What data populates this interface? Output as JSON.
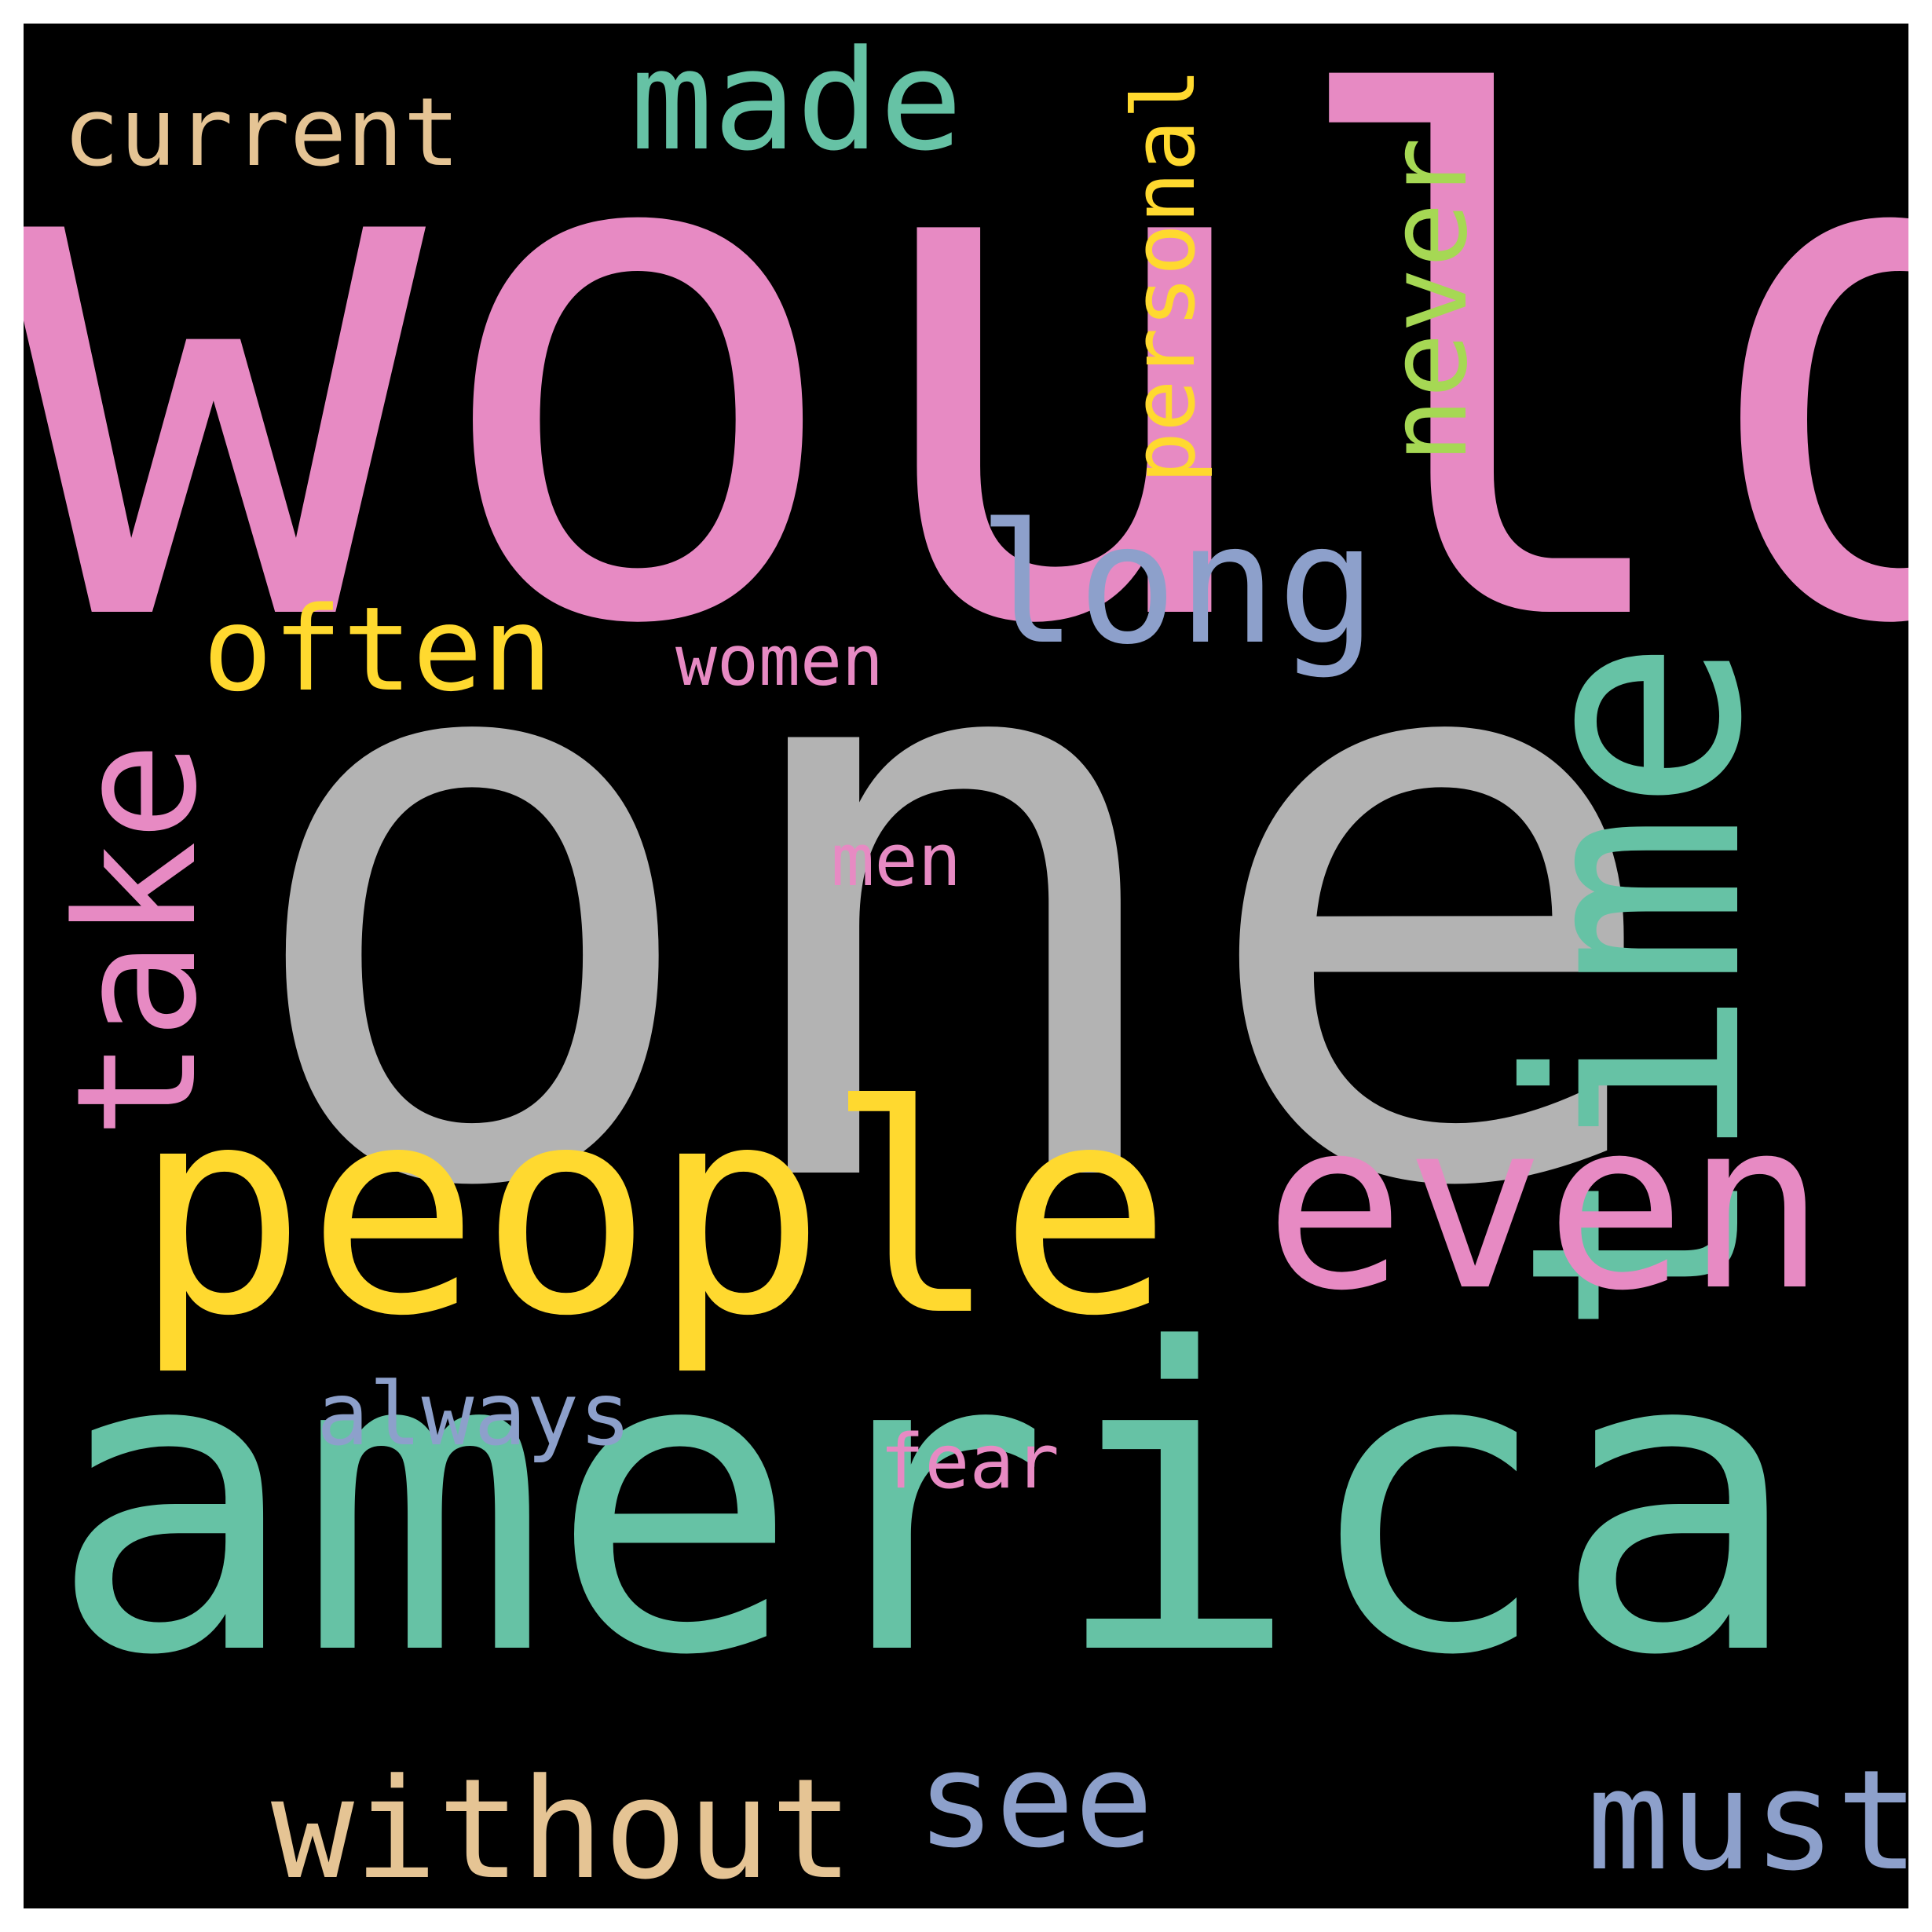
{
  "words": [
    {
      "text": "would",
      "color": "#e78ac3"
    },
    {
      "text": "one",
      "color": "#b3b3b3"
    },
    {
      "text": "america",
      "color": "#66c2a5"
    },
    {
      "text": "people",
      "color": "#ffd92f"
    },
    {
      "text": "time",
      "color": "#66c2a5"
    },
    {
      "text": "even",
      "color": "#e78ac3"
    },
    {
      "text": "take",
      "color": "#e78ac3"
    },
    {
      "text": "long",
      "color": "#8da0cb"
    },
    {
      "text": "made",
      "color": "#66c2a5"
    },
    {
      "text": "current",
      "color": "#e5c494"
    },
    {
      "text": "never",
      "color": "#a6d854"
    },
    {
      "text": "personal",
      "color": "#ffd92f"
    },
    {
      "text": "often",
      "color": "#ffd92f"
    },
    {
      "text": "women",
      "color": "#e78ac3"
    },
    {
      "text": "men",
      "color": "#e78ac3"
    },
    {
      "text": "always",
      "color": "#8da0cb"
    },
    {
      "text": "fear",
      "color": "#e78ac3"
    },
    {
      "text": "without",
      "color": "#e5c494"
    },
    {
      "text": "see",
      "color": "#8da0cb"
    },
    {
      "text": "must",
      "color": "#8da0cb"
    }
  ]
}
